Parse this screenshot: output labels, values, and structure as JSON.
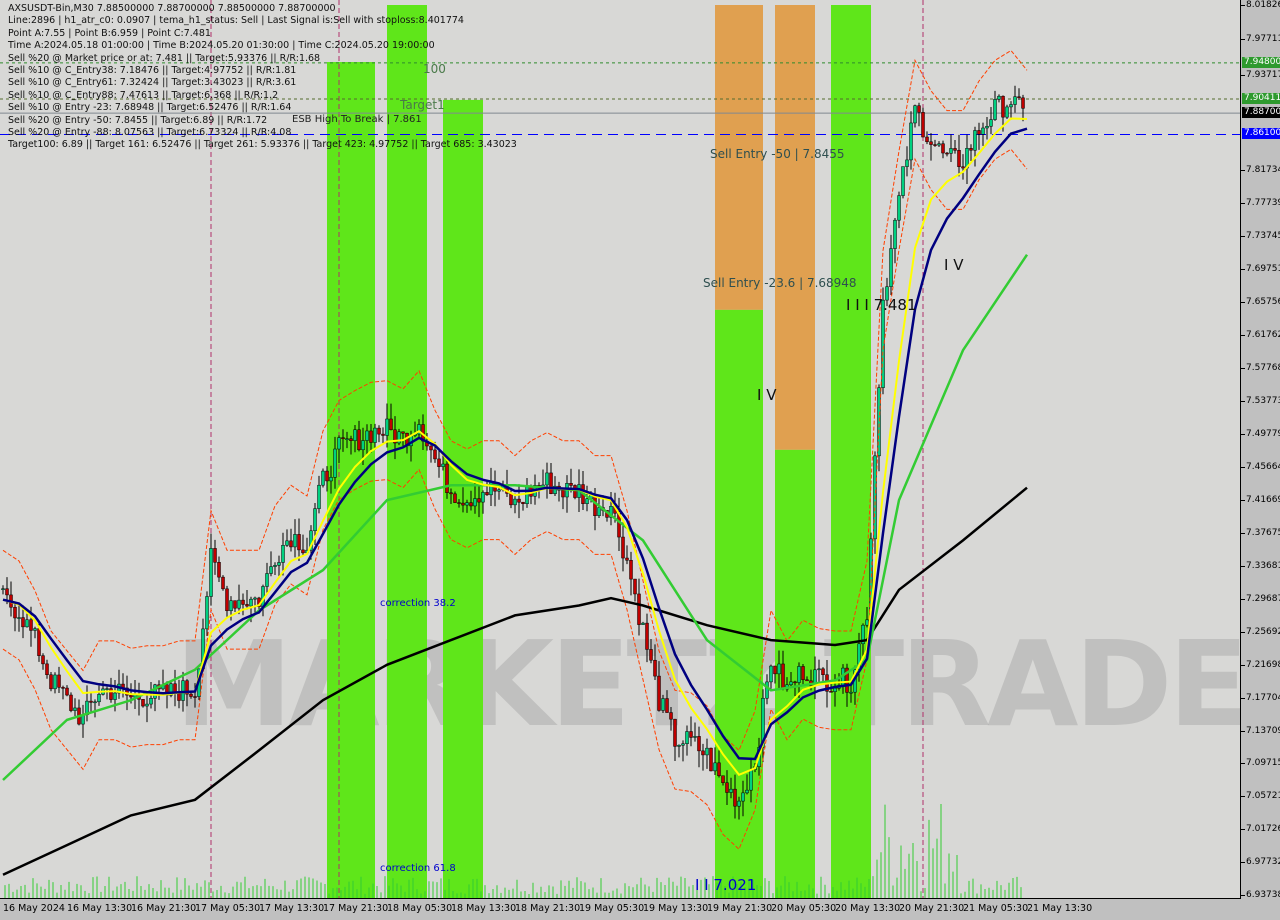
{
  "header": {
    "lines": [
      "AXSUSDT-Bin,M30  7.88500000 7.88700000 7.88500000 7.88700000",
      "Line:2896 | h1_atr_c0: 0.0907 | tema_h1_status: Sell | Last Signal is:Sell with stoploss:8.401774",
      "Point A:7.55 | Point B:6.959 | Point C:7.481",
      "Time A:2024.05.18 01:00:00 | Time B:2024.05.20 01:30:00 | Time C:2024.05.20 19:00:00",
      "Sell %20 @ Market price or at: 7.481 || Target:5.93376 || R/R:1.68",
      "Sell %10 @ C_Entry38: 7.18476 || Target:4.97752 || R/R:1.81",
      "Sell %10 @ C_Entry61: 7.32424 || Target:3.43023 || R/R:3.61",
      "Sell %10 @ C_Entry88: 7.47613 || Target:6.368 || R/R:1.2",
      "Sell %10 @ Entry -23: 7.68948 || Target:6.52476 || R/R:1.64",
      "Sell %20 @ Entry -50: 7.8455 || Target:6.89 || R/R:1.72",
      "Sell %20 @ Entry -88: 8.07563 || Target:6.73324 || R/R:4.08",
      "Target100: 6.89 || Target 161: 6.52476 || Target 261: 5.93376 || Target 423: 4.97752 || Target 685: 3.43023"
    ],
    "esb_label": "ESB High To Break | 7.861"
  },
  "annotations": {
    "level_100": "100",
    "target1": "Target1",
    "sell_entry_50": "Sell Entry -50 | 7.8455",
    "sell_entry_236": "Sell Entry -23.6 | 7.68948",
    "wave_iii": "I I I 7.481",
    "wave_iv_a": "I V",
    "wave_iv_b": "I V",
    "correction_382": "correction 38.2",
    "correction_618": "correction 61.8",
    "wave_ii": "I I 7.021"
  },
  "watermark": "MARKETZ|TRADE",
  "colors": {
    "background": "#d8d8d6",
    "bull_candle": "#00d080",
    "bear_candle": "#c00000",
    "green_zone": "#5fe61a",
    "orange_zone": "#e0a050",
    "ma_black": "#000000",
    "ma_green": "#33cc33",
    "ma_navy": "#000080",
    "ma_yellow": "#ffff00",
    "band_red": "#ff4000",
    "price_line_blue": "#0000ff",
    "tag_green": "#2e9a2e"
  },
  "chart_data": {
    "type": "candlestick",
    "symbol": "AXSUSDT-Bin",
    "timeframe": "M30",
    "ylim": [
      6.93738,
      8.01826
    ],
    "y_ticks": [
      "8.01826",
      "7.97711",
      "7.93717",
      "7.81734",
      "7.77739",
      "7.73745",
      "7.69751",
      "7.65756",
      "7.61762",
      "7.57768",
      "7.53773",
      "7.49779",
      "7.45664",
      "7.41669",
      "7.37675",
      "7.33681",
      "7.29687",
      "7.25692",
      "7.21698",
      "7.17704",
      "7.13709",
      "7.09715",
      "7.05721",
      "7.01726",
      "6.97732",
      "6.93738"
    ],
    "x_ticks": [
      "16 May 2024",
      "16 May 13:30",
      "16 May 21:30",
      "17 May 05:30",
      "17 May 13:30",
      "17 May 21:30",
      "18 May 05:30",
      "18 May 13:30",
      "18 May 21:30",
      "19 May 05:30",
      "19 May 13:30",
      "19 May 21:30",
      "20 May 05:30",
      "20 May 13:30",
      "20 May 21:30",
      "21 May 05:30",
      "21 May 13:30"
    ],
    "price_tags": [
      {
        "value": "7.94800",
        "color": "#2e9a2e"
      },
      {
        "value": "7.90411",
        "color": "#2e9a2e"
      },
      {
        "value": "7.88700",
        "color": "#000000"
      },
      {
        "value": "7.86100",
        "color": "#0000ff"
      }
    ],
    "horizontal_lines": [
      {
        "value": 7.948,
        "style": "dashed",
        "color": "#2e8b2e"
      },
      {
        "value": 7.90411,
        "style": "dashed",
        "color": "#556b2f"
      },
      {
        "value": 7.887,
        "style": "solid",
        "color": "#808890"
      },
      {
        "value": 7.861,
        "style": "dashed",
        "color": "#0000ff"
      }
    ],
    "close": {
      "x": [
        "16 May 05:30",
        "16 May 07:30",
        "16 May 09:30",
        "16 May 11:30",
        "16 May 13:30",
        "16 May 15:30",
        "16 May 17:30",
        "16 May 19:30",
        "16 May 21:30",
        "16 May 23:30",
        "17 May 01:30",
        "17 May 03:30",
        "17 May 05:30",
        "17 May 07:30",
        "17 May 09:30",
        "17 May 11:30",
        "17 May 13:30",
        "17 May 15:30",
        "17 May 17:30",
        "17 May 19:30",
        "17 May 21:30",
        "17 May 23:30",
        "18 May 01:30",
        "18 May 03:30",
        "18 May 05:30",
        "18 May 07:30",
        "18 May 09:30",
        "18 May 11:30",
        "18 May 13:30",
        "18 May 15:30",
        "18 May 17:30",
        "18 May 19:30",
        "18 May 21:30",
        "18 May 23:30",
        "19 May 01:30",
        "19 May 03:30",
        "19 May 05:30",
        "19 May 07:30",
        "19 May 09:30",
        "19 May 11:30",
        "19 May 13:30",
        "19 May 15:30",
        "19 May 17:30",
        "19 May 19:30",
        "19 May 21:30",
        "19 May 23:30",
        "20 May 01:30",
        "20 May 03:30",
        "20 May 05:30",
        "20 May 07:30",
        "20 May 09:30",
        "20 May 11:30",
        "20 May 13:30",
        "20 May 15:30",
        "20 May 17:30",
        "20 May 19:30",
        "20 May 21:30",
        "20 May 23:30",
        "21 May 01:30",
        "21 May 03:30",
        "21 May 05:30",
        "21 May 07:30",
        "21 May 09:30",
        "21 May 11:30",
        "21 May 13:30"
      ],
      "values": [
        7.296,
        7.283,
        7.247,
        7.198,
        7.174,
        7.15,
        7.186,
        7.186,
        7.177,
        7.18,
        7.18,
        7.186,
        7.186,
        7.344,
        7.296,
        7.296,
        7.296,
        7.35,
        7.375,
        7.362,
        7.441,
        7.478,
        7.49,
        7.5,
        7.502,
        7.492,
        7.514,
        7.466,
        7.429,
        7.419,
        7.429,
        7.429,
        7.411,
        7.429,
        7.439,
        7.429,
        7.429,
        7.411,
        7.411,
        7.344,
        7.259,
        7.174,
        7.126,
        7.123,
        7.107,
        7.071,
        7.053,
        7.101,
        7.223,
        7.186,
        7.211,
        7.201,
        7.198,
        7.198,
        7.283,
        7.66,
        7.781,
        7.891,
        7.854,
        7.83,
        7.83,
        7.866,
        7.891,
        7.903,
        7.879
      ]
    },
    "ma_slow_black": {
      "x": [
        "16 May 05:30",
        "16 May 13:30",
        "16 May 21:30",
        "17 May 05:30",
        "17 May 13:30",
        "17 May 21:30",
        "18 May 05:30",
        "18 May 13:30",
        "18 May 21:30",
        "19 May 05:30",
        "19 May 09:30",
        "19 May 13:30",
        "19 May 21:30",
        "20 May 05:30",
        "20 May 13:30",
        "20 May 17:30",
        "20 May 21:30",
        "21 May 05:30",
        "21 May 13:30"
      ],
      "values": [
        6.962,
        6.998,
        7.034,
        7.053,
        7.113,
        7.174,
        7.217,
        7.247,
        7.277,
        7.289,
        7.298,
        7.289,
        7.265,
        7.247,
        7.241,
        7.247,
        7.308,
        7.368,
        7.432
      ]
    },
    "ma_mid_green": {
      "x": [
        "16 May 05:30",
        "16 May 13:30",
        "16 May 21:30",
        "17 May 05:30",
        "17 May 13:30",
        "17 May 21:30",
        "18 May 05:30",
        "18 May 13:30",
        "18 May 21:30",
        "19 May 05:30",
        "19 May 13:30",
        "19 May 21:30",
        "20 May 05:30",
        "20 May 13:30",
        "20 May 17:30",
        "20 May 21:30",
        "21 May 05:30",
        "21 May 13:30"
      ],
      "values": [
        7.077,
        7.15,
        7.174,
        7.211,
        7.283,
        7.332,
        7.417,
        7.435,
        7.435,
        7.429,
        7.368,
        7.247,
        7.186,
        7.198,
        7.223,
        7.417,
        7.599,
        7.715
      ]
    },
    "zones": [
      {
        "start": "17 May 22:00",
        "end": "18 May 04:00",
        "top": 7.949,
        "color": "green"
      },
      {
        "start": "18 May 05:30",
        "end": "18 May 10:30",
        "top": 8.01826,
        "color": "green"
      },
      {
        "start": "18 May 12:30",
        "end": "18 May 17:30",
        "top": 7.903,
        "color": "green"
      },
      {
        "start": "19 May 22:30",
        "end": "20 May 04:30",
        "top": 8.01826,
        "split": 7.648,
        "color": "orange-green"
      },
      {
        "start": "20 May 06:00",
        "end": "20 May 11:00",
        "top": 8.01826,
        "split": 7.478,
        "color": "orange-green"
      },
      {
        "start": "20 May 13:00",
        "end": "20 May 18:00",
        "top": 8.01826,
        "color": "green"
      }
    ],
    "vertical_markers": [
      "17 May 07:30",
      "17 May 23:30",
      "21 May 00:30"
    ]
  }
}
